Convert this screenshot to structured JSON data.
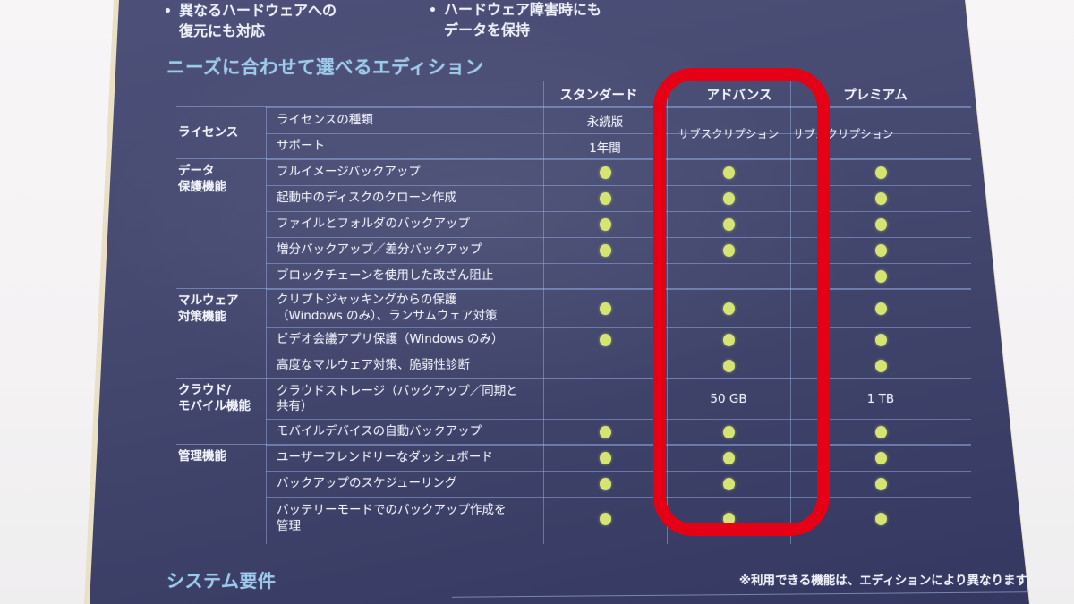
{
  "colors": {
    "photo_background": "#f5f3f4",
    "box_navy": "#454970",
    "accent_light_blue": "#9ccaec",
    "dot_green": "#d6e472",
    "highlight_red": "#e50016",
    "table_line_blue": "#96aee2",
    "box_edge_cream": "#e9e0c6"
  },
  "top_notes": [
    {
      "bullet": "•",
      "lines": [
        "異なるハードウェアへの",
        "復元にも対応"
      ]
    },
    {
      "bullet": "•",
      "lines": [
        "ハードウェア障害時にも",
        "データを保持"
      ]
    }
  ],
  "section_title": "ニーズに合わせて選べるエディション",
  "table": {
    "column_headers": [
      "スタンダード",
      "アドバンス",
      "プレミアム"
    ],
    "highlighted_column": "アドバンス",
    "groups": [
      {
        "label_lines": [
          "ライセンス"
        ],
        "merged_advance": "サブスクリプション",
        "merged_premium": "サブスクリプション",
        "rows": [
          {
            "feature_lines": [
              "ライセンスの種類"
            ],
            "cells": [
              "永続版",
              "",
              ""
            ]
          },
          {
            "feature_lines": [
              "サポート"
            ],
            "cells": [
              "1年間",
              "",
              ""
            ]
          }
        ]
      },
      {
        "label_lines": [
          "データ",
          "保護機能"
        ],
        "rows": [
          {
            "feature_lines": [
              "フルイメージバックアップ"
            ],
            "cells": [
              "dot",
              "dot",
              "dot"
            ]
          },
          {
            "feature_lines": [
              "起動中のディスクのクローン作成"
            ],
            "cells": [
              "dot",
              "dot",
              "dot"
            ]
          },
          {
            "feature_lines": [
              "ファイルとフォルダのバックアップ"
            ],
            "cells": [
              "dot",
              "dot",
              "dot"
            ]
          },
          {
            "feature_lines": [
              "増分バックアップ／差分バックアップ"
            ],
            "cells": [
              "dot",
              "dot",
              "dot"
            ]
          },
          {
            "feature_lines": [
              "ブロックチェーンを使用した改ざん阻止"
            ],
            "cells": [
              "",
              "",
              "dot"
            ]
          }
        ]
      },
      {
        "label_lines": [
          "マルウェア",
          "対策機能"
        ],
        "rows": [
          {
            "feature_lines": [
              "クリプトジャッキングからの保護",
              "（Windows のみ）、ランサムウェア対策"
            ],
            "cells": [
              "dot",
              "dot",
              "dot"
            ]
          },
          {
            "feature_lines": [
              "ビデオ会議アプリ保護（Windows のみ）"
            ],
            "cells": [
              "dot",
              "dot",
              "dot"
            ]
          },
          {
            "feature_lines": [
              "高度なマルウェア対策、脆弱性診断"
            ],
            "cells": [
              "",
              "dot",
              "dot"
            ]
          }
        ]
      },
      {
        "label_lines": [
          "クラウド/",
          "モバイル機能"
        ],
        "rows": [
          {
            "feature_lines": [
              "クラウドストレージ（バックアップ／同期と",
              "共有）"
            ],
            "cells": [
              "",
              "50 GB",
              "1 TB"
            ]
          },
          {
            "feature_lines": [
              "モバイルデバイスの自動バックアップ"
            ],
            "cells": [
              "dot",
              "dot",
              "dot"
            ]
          }
        ]
      },
      {
        "label_lines": [
          "管理機能"
        ],
        "rows": [
          {
            "feature_lines": [
              "ユーザーフレンドリーなダッシュボード"
            ],
            "cells": [
              "dot",
              "dot",
              "dot"
            ]
          },
          {
            "feature_lines": [
              "バックアップのスケジューリング"
            ],
            "cells": [
              "dot",
              "dot",
              "dot"
            ]
          },
          {
            "feature_lines": [
              "バッテリーモードでのバックアップ作成を",
              "管理"
            ],
            "cells": [
              "dot",
              "dot",
              "dot"
            ]
          }
        ]
      }
    ]
  },
  "footer": {
    "section_title": "システム要件",
    "note": "※利用できる機能は、エディションにより異なります"
  }
}
